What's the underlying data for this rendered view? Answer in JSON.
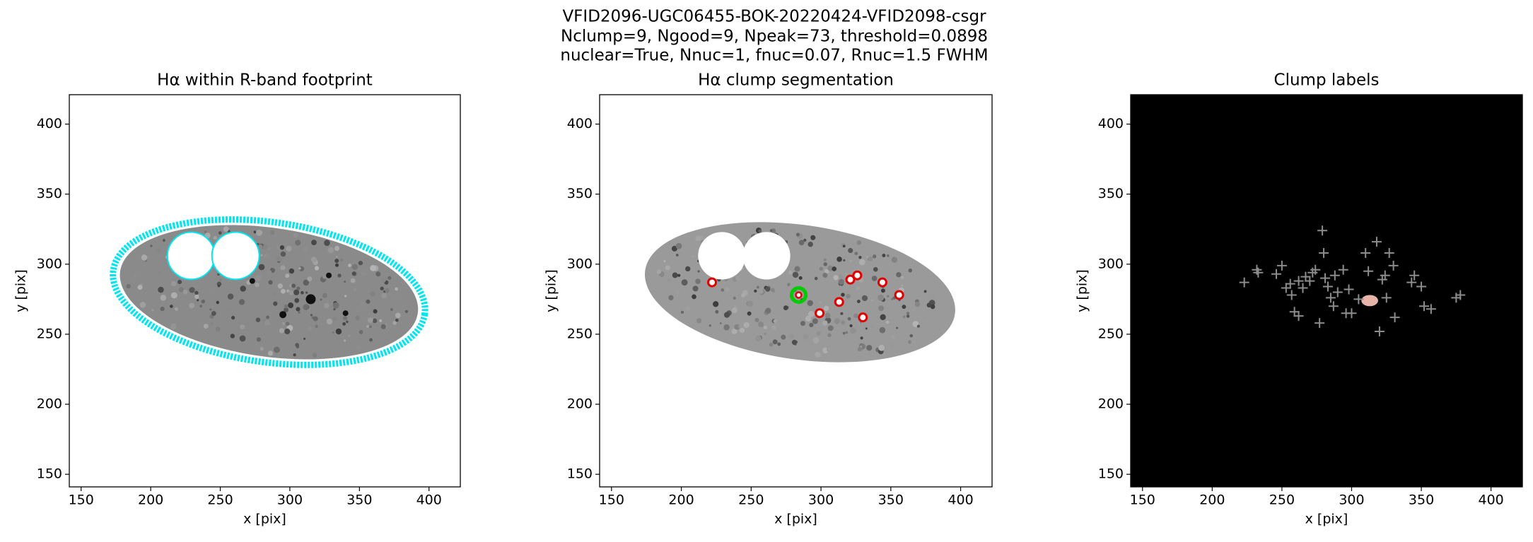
{
  "suptitle": [
    "VFID2096-UGC06455-BOK-20220424-VFID2098-csgr",
    "Nclump=9, Ngood=9, Npeak=73, threshold=0.0898",
    "nuclear=True, Nnuc=1, fnuc=0.07, Rnuc=1.5 FWHM"
  ],
  "chart_data": [
    {
      "type": "image",
      "title": "Hα within R-band footprint",
      "xlabel": "x [pix]",
      "ylabel": "y [pix]",
      "xlim": [
        141.5,
        422.5
      ],
      "ylim": [
        141,
        421
      ],
      "xticks": [
        150,
        200,
        250,
        300,
        350,
        400
      ],
      "yticks": [
        150,
        200,
        250,
        300,
        350,
        400
      ],
      "background": "#ffffff",
      "outline_color": "#00e5ee"
    },
    {
      "type": "scatter",
      "title": "Hα clump segmentation",
      "xlabel": "x [pix]",
      "ylabel": "y [pix]",
      "xlim": [
        141.5,
        422.5
      ],
      "ylim": [
        141,
        421
      ],
      "xticks": [
        150,
        200,
        250,
        300,
        350,
        400
      ],
      "yticks": [
        150,
        200,
        250,
        300,
        350,
        400
      ],
      "background": "#ffffff",
      "color": "#e00000",
      "x": [
        222,
        299,
        313,
        321,
        326,
        344,
        356,
        330
      ],
      "y": [
        287,
        265,
        273,
        289,
        292,
        287,
        278,
        262
      ],
      "nucleus": {
        "x": 284,
        "y": 278,
        "color": "#00cc00"
      }
    },
    {
      "type": "scatter",
      "title": "Clump labels",
      "xlabel": "x [pix]",
      "ylabel": "y [pix]",
      "xlim": [
        141.5,
        422.5
      ],
      "ylim": [
        141,
        421
      ],
      "xticks": [
        150,
        200,
        250,
        300,
        350,
        400
      ],
      "yticks": [
        150,
        200,
        250,
        300,
        350,
        400
      ],
      "background": "#000000",
      "color": "#8c8c8c",
      "x": [
        223,
        232,
        233,
        246,
        250,
        253,
        256,
        257,
        259,
        262,
        265,
        267,
        270,
        272,
        274,
        277,
        279,
        280,
        281,
        283,
        285,
        288,
        290,
        294,
        298,
        300,
        305,
        310,
        312,
        318,
        320,
        322,
        325,
        327,
        330,
        343,
        345,
        350,
        352,
        357,
        375,
        378,
        324,
        331,
        296,
        262,
        287
      ],
      "y": [
        287,
        296,
        294,
        293,
        299,
        283,
        286,
        278,
        266,
        288,
        283,
        291,
        288,
        294,
        296,
        258,
        324,
        308,
        290,
        284,
        276,
        292,
        280,
        296,
        282,
        265,
        275,
        308,
        295,
        316,
        252,
        289,
        276,
        308,
        299,
        287,
        292,
        284,
        270,
        268,
        276,
        278,
        292,
        262,
        265,
        263,
        270
      ]
    }
  ]
}
